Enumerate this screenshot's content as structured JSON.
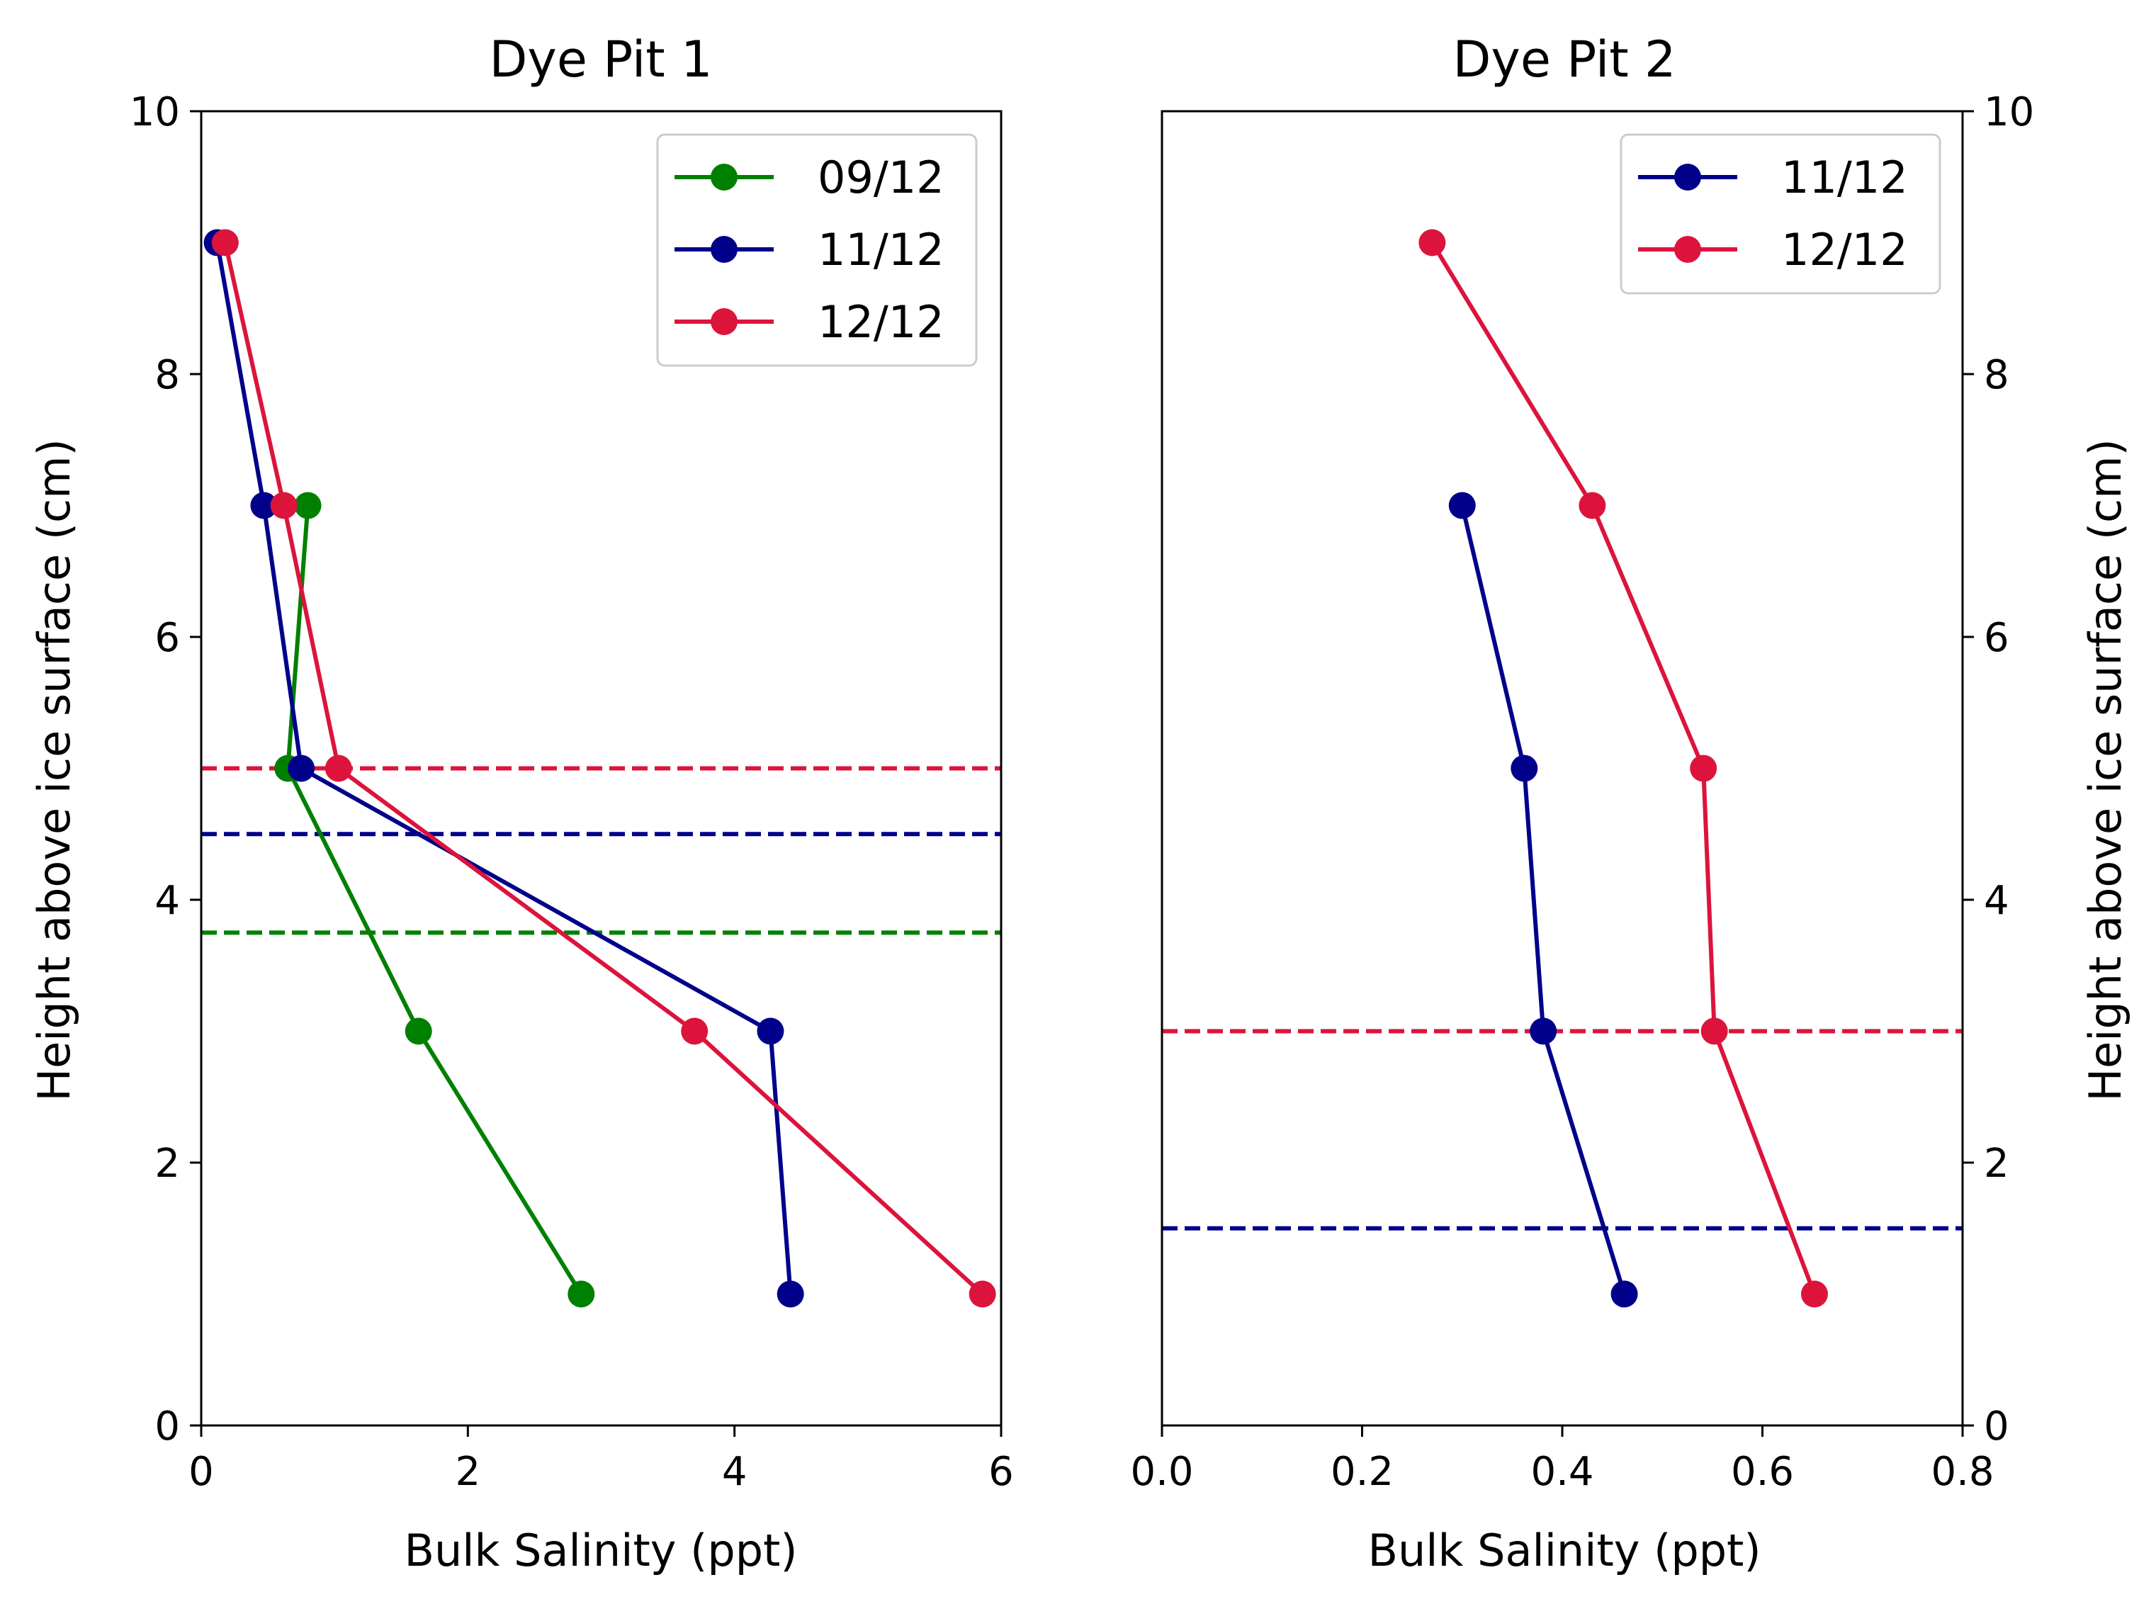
{
  "figure": {
    "colors": {
      "green": "#008000",
      "navy": "#00008b",
      "crimson": "#dc143c"
    }
  },
  "chart_data": [
    {
      "type": "line",
      "title": "Dye Pit 1",
      "xlabel": "Bulk Salinity (ppt)",
      "ylabel": "Height above ice surface (cm)",
      "xlim": [
        0,
        6
      ],
      "ylim": [
        0,
        10
      ],
      "xticks": [
        0,
        2,
        4,
        6
      ],
      "yticks": [
        0,
        2,
        4,
        6,
        8,
        10
      ],
      "ylabel_side": "left",
      "grid": false,
      "legend_position": "top-right",
      "series": [
        {
          "name": "09/12",
          "color": "#008000",
          "x": [
            2.85,
            1.63,
            0.65,
            0.8
          ],
          "y": [
            1,
            3,
            5,
            7
          ]
        },
        {
          "name": "11/12",
          "color": "#00008b",
          "x": [
            4.42,
            4.27,
            0.75,
            0.47,
            0.12
          ],
          "y": [
            1,
            3,
            5,
            7,
            9
          ]
        },
        {
          "name": "12/12",
          "color": "#dc143c",
          "x": [
            5.86,
            3.7,
            1.03,
            0.62,
            0.18
          ],
          "y": [
            1,
            3,
            5,
            7,
            9
          ]
        }
      ],
      "reference_lines": [
        {
          "y": 3.75,
          "color": "#008000",
          "style": "dashed"
        },
        {
          "y": 4.5,
          "color": "#00008b",
          "style": "dashed"
        },
        {
          "y": 5.0,
          "color": "#dc143c",
          "style": "dashed"
        }
      ]
    },
    {
      "type": "line",
      "title": "Dye Pit 2",
      "xlabel": "Bulk Salinity (ppt)",
      "ylabel": "Height above ice surface (cm)",
      "xlim": [
        0,
        0.8
      ],
      "ylim": [
        0,
        10
      ],
      "xticks": [
        "0.0",
        "0.2",
        "0.4",
        "0.6",
        "0.8"
      ],
      "yticks": [
        0,
        2,
        4,
        6,
        8,
        10
      ],
      "ylabel_side": "right",
      "grid": false,
      "legend_position": "top-right",
      "series": [
        {
          "name": "11/12",
          "color": "#00008b",
          "x": [
            0.462,
            0.381,
            0.362,
            0.3
          ],
          "y": [
            1,
            3,
            5,
            7
          ]
        },
        {
          "name": "12/12",
          "color": "#dc143c",
          "x": [
            0.652,
            0.552,
            0.541,
            0.43,
            0.27
          ],
          "y": [
            1,
            3,
            5,
            7,
            9
          ]
        }
      ],
      "reference_lines": [
        {
          "y": 1.5,
          "color": "#00008b",
          "style": "dashed"
        },
        {
          "y": 3.0,
          "color": "#dc143c",
          "style": "dashed"
        }
      ]
    }
  ]
}
